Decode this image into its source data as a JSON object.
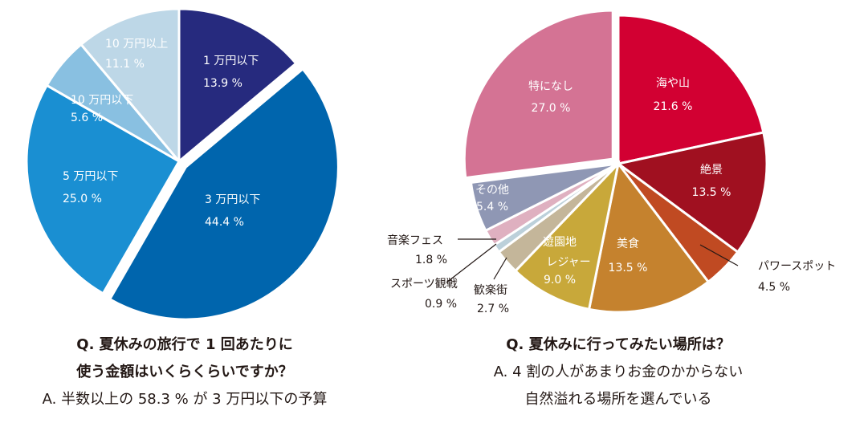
{
  "chart_data": [
    {
      "type": "pie",
      "title": "Q. 夏休みの旅行で 1 回あたりに",
      "categories": [
        "1 万円以下",
        "3 万円以下",
        "5 万円以下",
        "10 万円以下",
        "10 万円以上"
      ],
      "values": [
        13.9,
        44.4,
        25.0,
        5.6,
        11.1
      ],
      "value_labels": [
        "13.9 %",
        "44.4 %",
        "25.0 %",
        "5.6 %",
        "11.1 %"
      ],
      "colors": [
        "#262a7e",
        "#0065ad",
        "#1a8fd2",
        "#89c0e1",
        "#bdd7e7"
      ],
      "exploded": "3 万円以下"
    },
    {
      "type": "pie",
      "title": "Q. 夏休みに行ってみたい場所は？",
      "categories": [
        "海や山",
        "絶景",
        "パワースポット",
        "美食",
        "遊園地レジャー",
        "歓楽街",
        "スポーツ観戦",
        "音楽フェス",
        "その他",
        "特になし"
      ],
      "display_labels": [
        "海や山",
        "絶景",
        "パワースポット",
        "美食",
        "遊園地",
        "歓楽街",
        "スポーツ観戦",
        "音楽フェス",
        "その他",
        "特になし"
      ],
      "display_labels2": [
        "",
        "",
        "",
        "",
        "レジャー",
        "",
        "",
        "",
        "",
        ""
      ],
      "values": [
        21.6,
        13.5,
        4.5,
        13.5,
        9.0,
        2.7,
        0.9,
        1.8,
        5.4,
        27.0
      ],
      "value_labels": [
        "21.6 %",
        "13.5 %",
        "4.5 %",
        "13.5 %",
        "9.0 %",
        "2.7 %",
        "0.9 %",
        "1.8 %",
        "5.4 %",
        "27.0 %"
      ],
      "colors": [
        "#d20032",
        "#a01020",
        "#c04a22",
        "#c5822e",
        "#c8a83a",
        "#c4b69a",
        "#bcd0da",
        "#dfb0c0",
        "#8f97b4",
        "#d47394"
      ],
      "exploded": "特になし"
    }
  ],
  "captions": {
    "left": {
      "q_line1": "Q. 夏休みの旅行で 1 回あたりに",
      "q_line2": "使う金額はいくらくらいですか？",
      "answer": "A. 半数以上の 58.3 % が 3 万円以下の予算"
    },
    "right": {
      "q_line1": "Q. 夏休みに行ってみたい場所は？",
      "a_line1": "A. 4 割の人があまりお金のかからない",
      "a_line2": "自然溢れる場所を選んでいる"
    }
  }
}
